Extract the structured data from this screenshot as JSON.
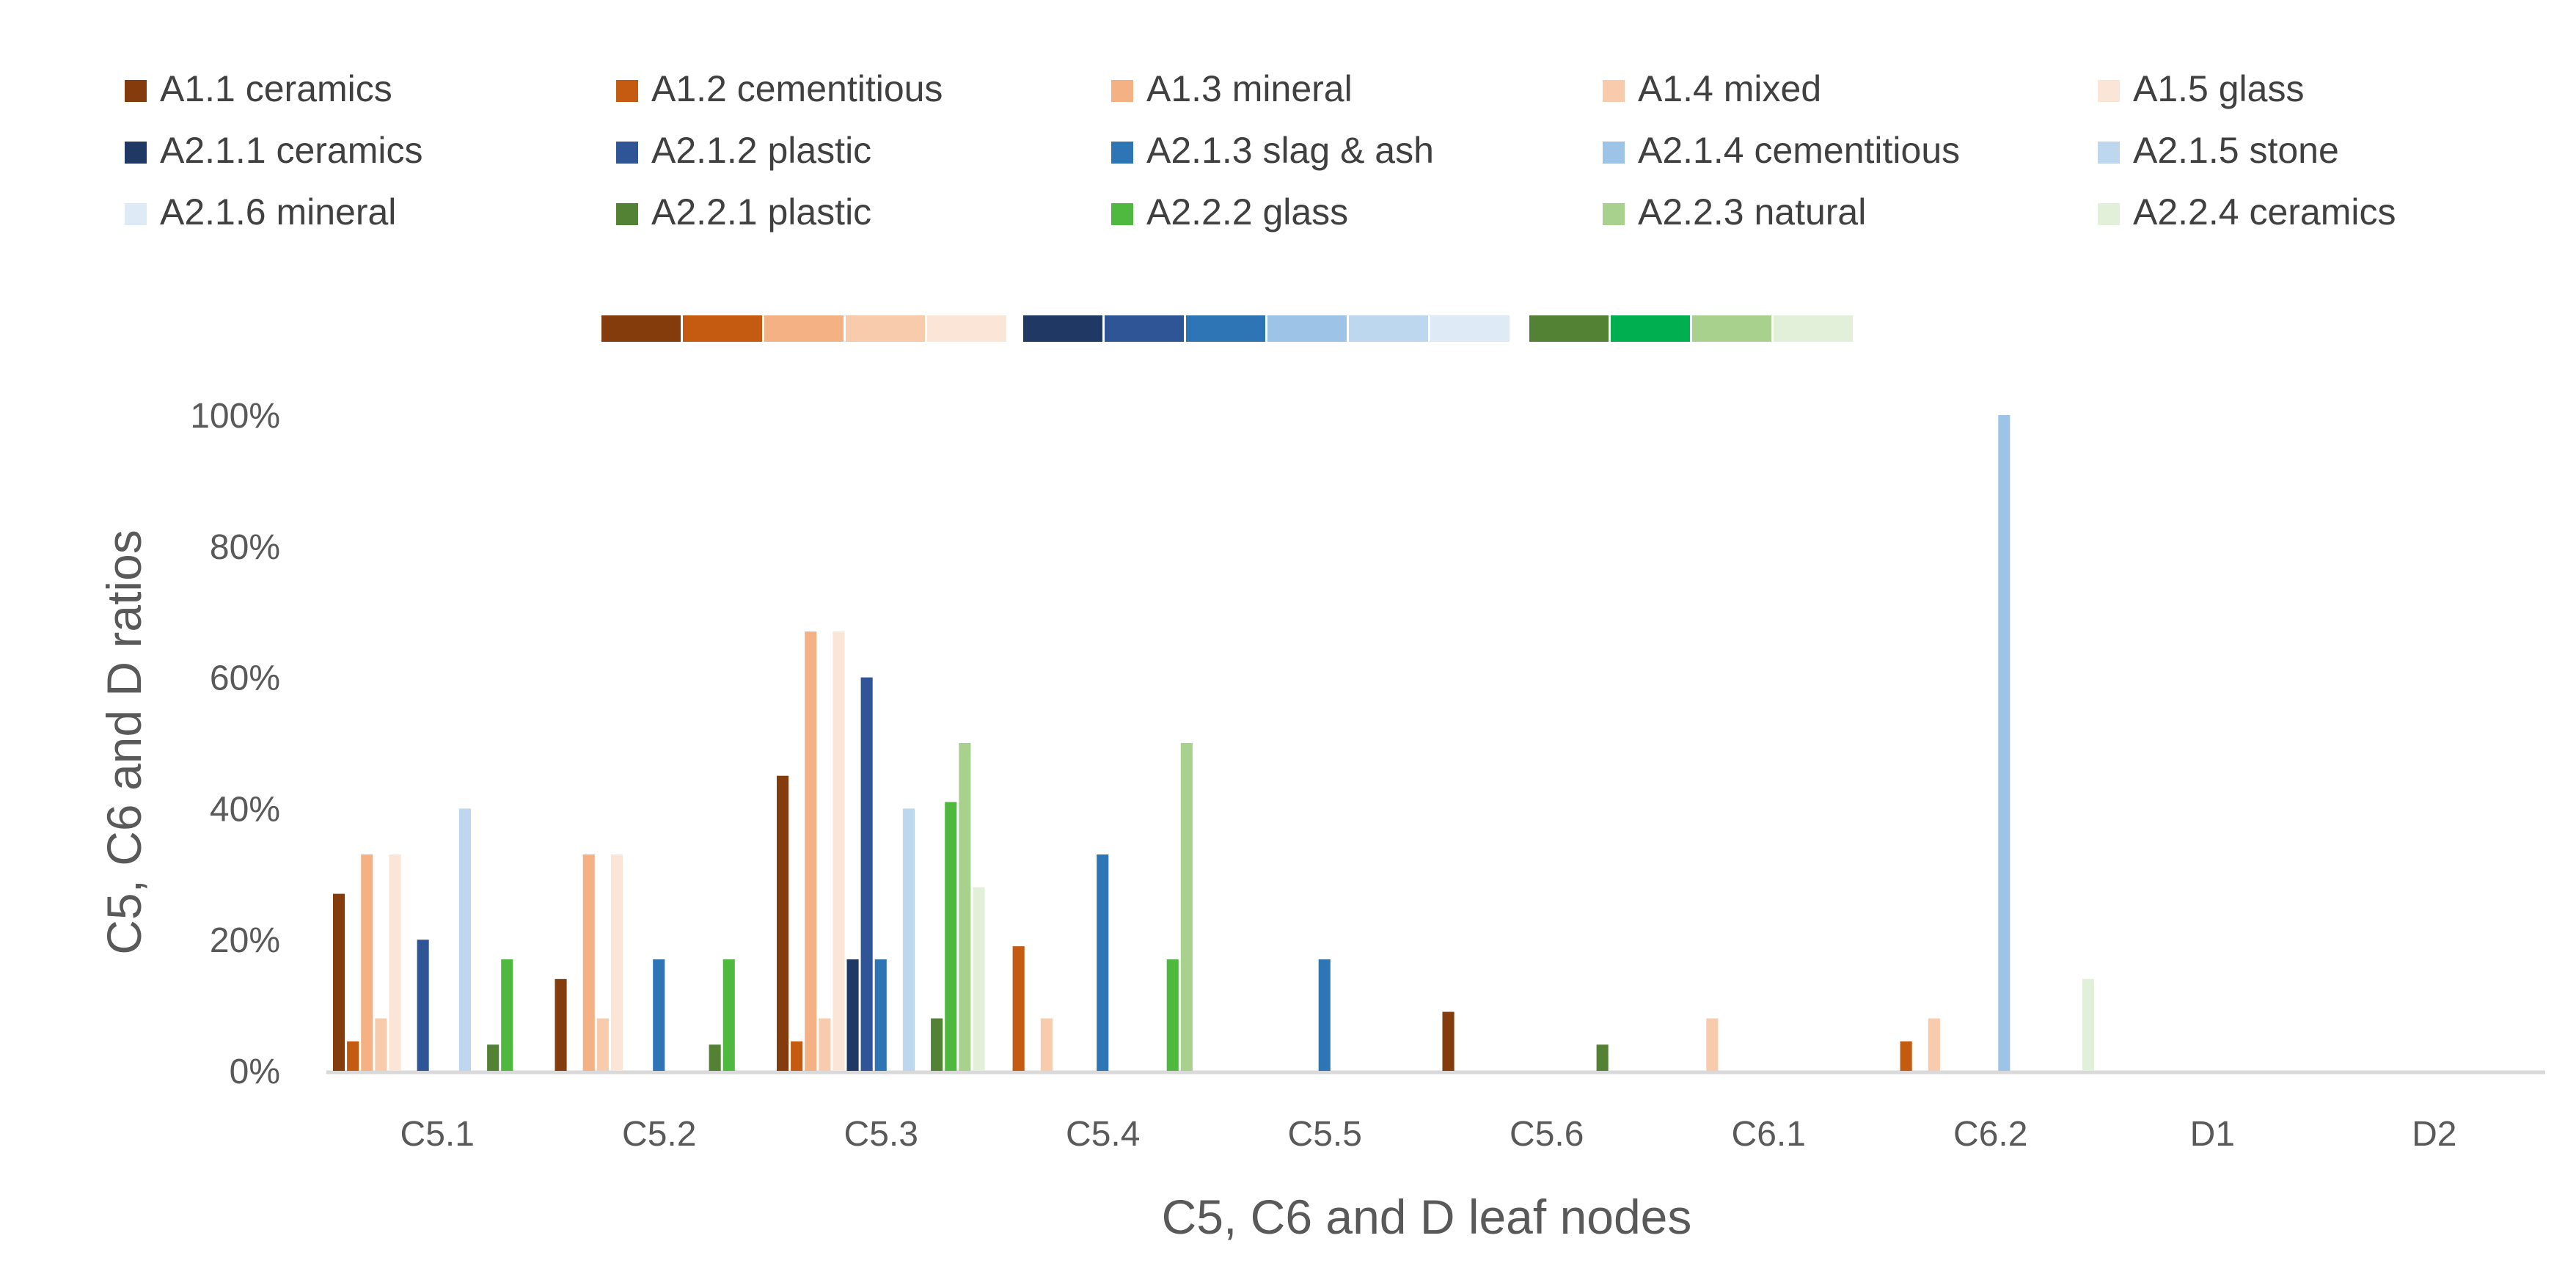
{
  "chart_data": {
    "type": "bar",
    "title": "",
    "xlabel": "C5, C6 and D leaf nodes",
    "ylabel": "C5, C6 and D ratios",
    "ylim": [
      0,
      100
    ],
    "yticks": [
      0,
      20,
      40,
      60,
      80,
      100
    ],
    "ytick_labels": [
      "0%",
      "20%",
      "40%",
      "60%",
      "80%",
      "100%"
    ],
    "grid": false,
    "legend_position": "top",
    "categories": [
      "C5.1",
      "C5.2",
      "C5.3",
      "C5.4",
      "C5.5",
      "C5.6",
      "C6.1",
      "C6.2",
      "D1",
      "D2"
    ],
    "series": [
      {
        "name": "A1.1 ceramics",
        "color": "#843C0C",
        "values": [
          27,
          14,
          45,
          0,
          0,
          9,
          0,
          0,
          0,
          0
        ]
      },
      {
        "name": "A1.2 cementitious",
        "color": "#C55A11",
        "values": [
          4.5,
          0,
          4.5,
          19,
          0,
          0,
          0,
          4.5,
          0,
          0
        ]
      },
      {
        "name": "A1.3 mineral",
        "color": "#F4B183",
        "values": [
          33,
          33,
          67,
          0,
          0,
          0,
          0,
          0,
          0,
          0
        ]
      },
      {
        "name": "A1.4 mixed",
        "color": "#F8CBAD",
        "values": [
          8,
          8,
          8,
          8,
          0,
          0,
          8,
          8,
          0,
          0
        ]
      },
      {
        "name": "A1.5 glass",
        "color": "#FBE5D6",
        "values": [
          33,
          33,
          67,
          0,
          0,
          0,
          0,
          0,
          0,
          0
        ]
      },
      {
        "name": "A2.1.1 ceramics",
        "color": "#1F3864",
        "values": [
          0,
          0,
          17,
          0,
          0,
          0,
          0,
          0,
          0,
          0
        ]
      },
      {
        "name": "A2.1.2 plastic",
        "color": "#2F5597",
        "values": [
          20,
          0,
          60,
          0,
          0,
          0,
          0,
          0,
          0,
          0
        ]
      },
      {
        "name": "A2.1.3 slag & ash",
        "color": "#2E75B6",
        "values": [
          0,
          17,
          17,
          33,
          17,
          0,
          0,
          0,
          0,
          0
        ]
      },
      {
        "name": "A2.1.4 cementitious",
        "color": "#9DC3E6",
        "values": [
          0,
          0,
          0,
          0,
          0,
          0,
          0,
          100,
          0,
          0
        ]
      },
      {
        "name": "A2.1.5 stone",
        "color": "#BDD7EE",
        "values": [
          40,
          0,
          40,
          0,
          0,
          0,
          0,
          0,
          0,
          0
        ]
      },
      {
        "name": "A2.1.6 mineral",
        "color": "#DEEBF7",
        "values": [
          0,
          0,
          0,
          0,
          0,
          0,
          0,
          0,
          0,
          0
        ]
      },
      {
        "name": "A2.2.1 plastic",
        "color": "#548235",
        "values": [
          4,
          4,
          8,
          0,
          0,
          4,
          0,
          0,
          0,
          0
        ]
      },
      {
        "name": "A2.2.2 glass",
        "color": "#4EB93E",
        "values": [
          17,
          17,
          41,
          17,
          0,
          0,
          0,
          0,
          0,
          0
        ]
      },
      {
        "name": "A2.2.3 natural",
        "color": "#A9D18E",
        "values": [
          0,
          0,
          50,
          50,
          0,
          0,
          0,
          0,
          0,
          0
        ]
      },
      {
        "name": "A2.2.4 ceramics",
        "color": "#E2F0D9",
        "values": [
          0,
          0,
          28,
          0,
          0,
          0,
          0,
          14,
          0,
          0
        ]
      }
    ],
    "color_strip": [
      "#843C0C",
      "#C55A11",
      "#F4B183",
      "#F8CBAD",
      "#FBE5D6",
      "#1F3864",
      "#2F5597",
      "#2E75B6",
      "#9DC3E6",
      "#BDD7EE",
      "#DEEBF7",
      "#548235",
      "#00B050",
      "#A9D18E",
      "#E2F0D9"
    ]
  }
}
